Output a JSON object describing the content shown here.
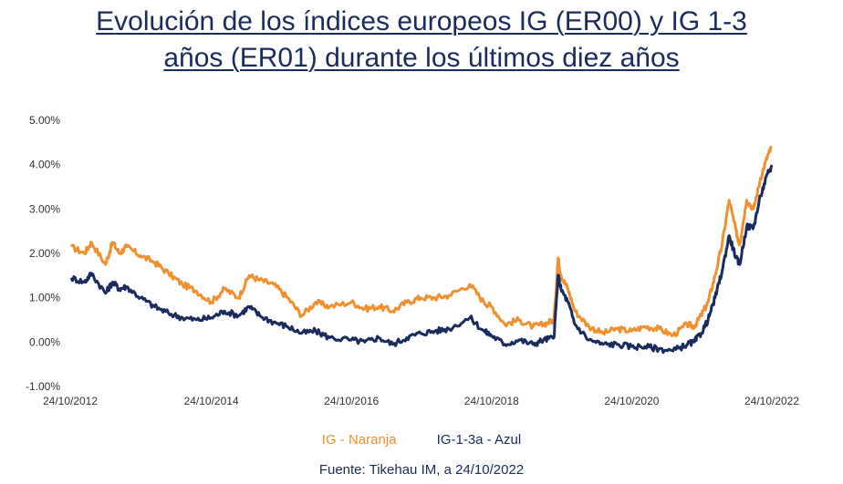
{
  "chart_data": {
    "type": "line",
    "title_line1": "Evolución de los índices europeos IG (ER00) y IG 1-3",
    "title_line2": "años (ER01) durante los últimos diez años",
    "ylim": [
      -1.0,
      5.0
    ],
    "yticks": [
      "5.00%",
      "4.00%",
      "3.00%",
      "2.00%",
      "1.00%",
      "0.00%",
      "-1.00%"
    ],
    "ytick_values": [
      5,
      4,
      3,
      2,
      1,
      0,
      -1
    ],
    "xlim": [
      2012.81,
      2022.81
    ],
    "xticks": [
      "24/10/2012",
      "24/10/2014",
      "24/10/2016",
      "24/10/2018",
      "24/10/2020",
      "24/10/2022"
    ],
    "xtick_values": [
      2012.81,
      2014.81,
      2016.81,
      2018.81,
      2020.81,
      2022.81
    ],
    "series": [
      {
        "name": "IG - Naranja",
        "color": "#f0902f",
        "x": [
          2012.81,
          2013.0,
          2013.1,
          2013.3,
          2013.4,
          2013.5,
          2013.6,
          2013.8,
          2014.0,
          2014.2,
          2014.4,
          2014.6,
          2014.81,
          2015.0,
          2015.2,
          2015.35,
          2015.5,
          2015.7,
          2015.9,
          2016.1,
          2016.3,
          2016.5,
          2016.81,
          2017.0,
          2017.2,
          2017.4,
          2017.6,
          2017.8,
          2018.0,
          2018.2,
          2018.5,
          2018.7,
          2018.81,
          2019.0,
          2019.2,
          2019.4,
          2019.55,
          2019.7,
          2019.76,
          2019.8,
          2019.9,
          2020.0,
          2020.2,
          2020.4,
          2020.6,
          2020.81,
          2021.0,
          2021.2,
          2021.4,
          2021.6,
          2021.7,
          2021.8,
          2021.9,
          2022.0,
          2022.1,
          2022.2,
          2022.3,
          2022.35,
          2022.45,
          2022.55,
          2022.65,
          2022.75,
          2022.81
        ],
        "values": [
          2.15,
          2.0,
          2.25,
          1.75,
          2.25,
          2.0,
          2.15,
          1.95,
          1.8,
          1.55,
          1.3,
          1.15,
          0.9,
          1.2,
          1.0,
          1.5,
          1.4,
          1.3,
          1.0,
          0.6,
          0.9,
          0.8,
          0.9,
          0.75,
          0.8,
          0.7,
          0.9,
          1.0,
          1.0,
          1.05,
          1.3,
          0.9,
          0.8,
          0.4,
          0.5,
          0.35,
          0.4,
          0.5,
          1.9,
          1.5,
          1.2,
          0.7,
          0.35,
          0.2,
          0.3,
          0.25,
          0.35,
          0.3,
          0.15,
          0.4,
          0.35,
          0.6,
          0.9,
          1.5,
          2.2,
          3.2,
          2.5,
          2.2,
          3.2,
          3.0,
          3.7,
          4.2,
          4.4
        ]
      },
      {
        "name": "IG-1-3a - Azul",
        "color": "#1a2b5e",
        "x": [
          2012.81,
          2013.0,
          2013.1,
          2013.3,
          2013.4,
          2013.5,
          2013.6,
          2013.8,
          2014.0,
          2014.2,
          2014.4,
          2014.6,
          2014.81,
          2015.0,
          2015.2,
          2015.35,
          2015.5,
          2015.7,
          2015.9,
          2016.1,
          2016.3,
          2016.5,
          2016.81,
          2017.0,
          2017.2,
          2017.4,
          2017.6,
          2017.8,
          2018.0,
          2018.2,
          2018.5,
          2018.7,
          2018.81,
          2019.0,
          2019.2,
          2019.4,
          2019.55,
          2019.7,
          2019.76,
          2019.8,
          2019.9,
          2020.0,
          2020.2,
          2020.4,
          2020.6,
          2020.81,
          2021.0,
          2021.2,
          2021.4,
          2021.6,
          2021.7,
          2021.8,
          2021.9,
          2022.0,
          2022.1,
          2022.2,
          2022.3,
          2022.35,
          2022.45,
          2022.55,
          2022.65,
          2022.75,
          2022.81
        ],
        "values": [
          1.45,
          1.35,
          1.55,
          1.1,
          1.35,
          1.2,
          1.25,
          1.0,
          0.8,
          0.65,
          0.55,
          0.5,
          0.55,
          0.7,
          0.6,
          0.8,
          0.6,
          0.45,
          0.35,
          0.2,
          0.25,
          0.1,
          0.05,
          0.0,
          0.1,
          -0.05,
          0.1,
          0.2,
          0.25,
          0.3,
          0.55,
          0.25,
          0.15,
          -0.05,
          0.05,
          -0.05,
          0.05,
          0.1,
          1.5,
          1.2,
          0.9,
          0.4,
          0.05,
          -0.05,
          -0.05,
          -0.1,
          -0.1,
          -0.15,
          -0.2,
          -0.05,
          0.0,
          0.2,
          0.5,
          1.0,
          1.6,
          2.4,
          1.9,
          1.75,
          2.6,
          2.6,
          3.3,
          3.8,
          3.95
        ]
      }
    ]
  },
  "legend": {
    "orange_label": "IG - Naranja",
    "navy_label": "IG-1-3a - Azul"
  },
  "source_text": "Fuente: Tikehau IM, a 24/10/2022"
}
